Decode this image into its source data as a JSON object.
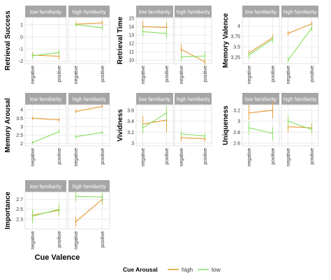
{
  "colors": {
    "high": "#E69F3A",
    "low": "#8EE06A",
    "strip_bg": "#A6A6A6",
    "strip_text": "#ffffff",
    "grid": "#E6E6E6",
    "panel_border": "#DDDDDD",
    "axis_text": "#333333",
    "title_text": "#000000"
  },
  "legend": {
    "title": "Cue Arousal",
    "items": [
      {
        "key": "high",
        "label": "high"
      },
      {
        "key": "low",
        "label": "low"
      }
    ],
    "position": "bottom"
  },
  "x_axis_title": "Cue Valence",
  "chart_data": [
    {
      "type": "line",
      "ylabel": "Retrieval Success",
      "ylim": [
        -2.2,
        1.6
      ],
      "yticks": [
        -2,
        -1,
        0,
        1
      ],
      "x": [
        "negative",
        "positive"
      ],
      "facets": [
        {
          "strip": "low familiarity",
          "series": [
            {
              "name": "high",
              "values": [
                -1.5,
                -1.6
              ],
              "err_lo": [
                -1.75,
                -1.85
              ],
              "err_hi": [
                -1.25,
                -1.35
              ]
            },
            {
              "name": "low",
              "values": [
                -1.55,
                -1.3
              ],
              "err_lo": [
                -1.8,
                -1.55
              ],
              "err_hi": [
                -1.3,
                -1.05
              ]
            }
          ]
        },
        {
          "strip": "high familiarity",
          "series": [
            {
              "name": "high",
              "values": [
                1.05,
                1.15
              ],
              "err_lo": [
                0.85,
                0.95
              ],
              "err_hi": [
                1.25,
                1.35
              ]
            },
            {
              "name": "low",
              "values": [
                1.0,
                0.75
              ],
              "err_lo": [
                0.85,
                0.55
              ],
              "err_hi": [
                1.15,
                0.95
              ]
            }
          ]
        }
      ]
    },
    {
      "type": "line",
      "ylabel": "Retrieval Time",
      "ylim": [
        9.6,
        15.1
      ],
      "yticks": [
        10,
        11,
        12,
        13,
        14,
        15
      ],
      "x": [
        "negative",
        "positive"
      ],
      "facets": [
        {
          "strip": "low familiarity",
          "series": [
            {
              "name": "high",
              "values": [
                14.0,
                13.9
              ],
              "err_lo": [
                13.3,
                13.3
              ],
              "err_hi": [
                14.7,
                14.5
              ]
            },
            {
              "name": "low",
              "values": [
                13.4,
                13.2
              ],
              "err_lo": [
                12.9,
                12.6
              ],
              "err_hi": [
                13.9,
                13.8
              ]
            }
          ]
        },
        {
          "strip": "high familiarity",
          "series": [
            {
              "name": "high",
              "values": [
                11.3,
                9.8
              ],
              "err_lo": [
                10.7,
                9.4
              ],
              "err_hi": [
                11.9,
                10.3
              ]
            },
            {
              "name": "low",
              "values": [
                10.4,
                10.5
              ],
              "err_lo": [
                9.9,
                10.0
              ],
              "err_hi": [
                10.9,
                11.0
              ]
            }
          ]
        }
      ]
    },
    {
      "type": "line",
      "ylabel": "Memory Valence",
      "ylim": [
        3.1,
        4.2
      ],
      "yticks": [
        3.25,
        3.5,
        3.75,
        4.0
      ],
      "x": [
        "negative",
        "positive"
      ],
      "facets": [
        {
          "strip": "low familiarity",
          "series": [
            {
              "name": "high",
              "values": [
                3.35,
                3.72
              ],
              "err_lo": [
                3.28,
                3.65
              ],
              "err_hi": [
                3.42,
                3.8
              ]
            },
            {
              "name": "low",
              "values": [
                3.3,
                3.68
              ],
              "err_lo": [
                3.22,
                3.6
              ],
              "err_hi": [
                3.38,
                3.76
              ]
            }
          ]
        },
        {
          "strip": "high familiarity",
          "series": [
            {
              "name": "high",
              "values": [
                3.82,
                4.05
              ],
              "err_lo": [
                3.76,
                3.99
              ],
              "err_hi": [
                3.88,
                4.11
              ]
            },
            {
              "name": "low",
              "values": [
                3.18,
                3.95
              ],
              "err_lo": [
                3.12,
                3.88
              ],
              "err_hi": [
                3.24,
                4.02
              ]
            }
          ]
        }
      ]
    },
    {
      "type": "line",
      "ylabel": "Memory Arousal",
      "ylim": [
        1.85,
        4.3
      ],
      "yticks": [
        2.0,
        2.5,
        3.0,
        3.5,
        4.0
      ],
      "x": [
        "negative",
        "positive"
      ],
      "facets": [
        {
          "strip": "low familiarity",
          "series": [
            {
              "name": "high",
              "values": [
                3.5,
                3.4
              ],
              "err_lo": [
                3.38,
                3.28
              ],
              "err_hi": [
                3.62,
                3.52
              ]
            },
            {
              "name": "low",
              "values": [
                2.05,
                2.7
              ],
              "err_lo": [
                1.95,
                2.58
              ],
              "err_hi": [
                2.15,
                2.82
              ]
            }
          ]
        },
        {
          "strip": "high familiarity",
          "series": [
            {
              "name": "high",
              "values": [
                3.9,
                4.2
              ],
              "err_lo": [
                3.8,
                4.1
              ],
              "err_hi": [
                4.0,
                4.3
              ]
            },
            {
              "name": "low",
              "values": [
                2.4,
                2.65
              ],
              "err_lo": [
                2.3,
                2.55
              ],
              "err_hi": [
                2.5,
                2.75
              ]
            }
          ]
        }
      ]
    },
    {
      "type": "line",
      "ylabel": "Vividness",
      "ylim": [
        2.95,
        3.7
      ],
      "yticks": [
        3.0,
        3.2,
        3.4,
        3.6
      ],
      "x": [
        "negative",
        "positive"
      ],
      "facets": [
        {
          "strip": "low familiarity",
          "series": [
            {
              "name": "high",
              "values": [
                3.35,
                3.42
              ],
              "err_lo": [
                3.2,
                3.2
              ],
              "err_hi": [
                3.5,
                3.64
              ]
            },
            {
              "name": "low",
              "values": [
                3.28,
                3.55
              ],
              "err_lo": [
                3.18,
                3.42
              ],
              "err_hi": [
                3.38,
                3.68
              ]
            }
          ]
        },
        {
          "strip": "high familiarity",
          "series": [
            {
              "name": "high",
              "values": [
                3.1,
                3.08
              ],
              "err_lo": [
                3.04,
                3.02
              ],
              "err_hi": [
                3.16,
                3.14
              ]
            },
            {
              "name": "low",
              "values": [
                3.17,
                3.13
              ],
              "err_lo": [
                3.12,
                3.08
              ],
              "err_hi": [
                3.22,
                3.18
              ]
            }
          ]
        }
      ]
    },
    {
      "type": "line",
      "ylabel": "Uniqueness",
      "ylim": [
        2.55,
        3.3
      ],
      "yticks": [
        2.6,
        2.8,
        3.0,
        3.2
      ],
      "x": [
        "negative",
        "positive"
      ],
      "facets": [
        {
          "strip": "low familiarity",
          "series": [
            {
              "name": "high",
              "values": [
                3.15,
                3.2
              ],
              "err_lo": [
                3.02,
                3.05
              ],
              "err_hi": [
                3.3,
                3.35
              ]
            },
            {
              "name": "low",
              "values": [
                2.88,
                2.78
              ],
              "err_lo": [
                2.75,
                2.65
              ],
              "err_hi": [
                3.0,
                2.9
              ]
            }
          ]
        },
        {
          "strip": "high familiarity",
          "series": [
            {
              "name": "high",
              "values": [
                2.9,
                2.88
              ],
              "err_lo": [
                2.8,
                2.8
              ],
              "err_hi": [
                3.0,
                2.96
              ]
            },
            {
              "name": "low",
              "values": [
                3.0,
                2.85
              ],
              "err_lo": [
                2.9,
                2.78
              ],
              "err_hi": [
                3.1,
                2.92
              ]
            }
          ]
        }
      ]
    },
    {
      "type": "line",
      "ylabel": "Importance",
      "ylim": [
        2.1,
        2.85
      ],
      "yticks": [
        2.3,
        2.5,
        2.7
      ],
      "x": [
        "negative",
        "positive"
      ],
      "facets": [
        {
          "strip": "low familiarity",
          "series": [
            {
              "name": "high",
              "values": [
                2.38,
                2.48
              ],
              "err_lo": [
                2.25,
                2.38
              ],
              "err_hi": [
                2.5,
                2.6
              ]
            },
            {
              "name": "low",
              "values": [
                2.36,
                2.5
              ],
              "err_lo": [
                2.22,
                2.4
              ],
              "err_hi": [
                2.5,
                2.6
              ]
            }
          ]
        },
        {
          "strip": "high familiarity",
          "series": [
            {
              "name": "high",
              "values": [
                2.25,
                2.7
              ],
              "err_lo": [
                2.15,
                2.6
              ],
              "err_hi": [
                2.35,
                2.8
              ]
            },
            {
              "name": "low",
              "values": [
                2.76,
                2.75
              ],
              "err_lo": [
                2.66,
                2.64
              ],
              "err_hi": [
                2.86,
                2.84
              ]
            }
          ]
        }
      ]
    }
  ]
}
